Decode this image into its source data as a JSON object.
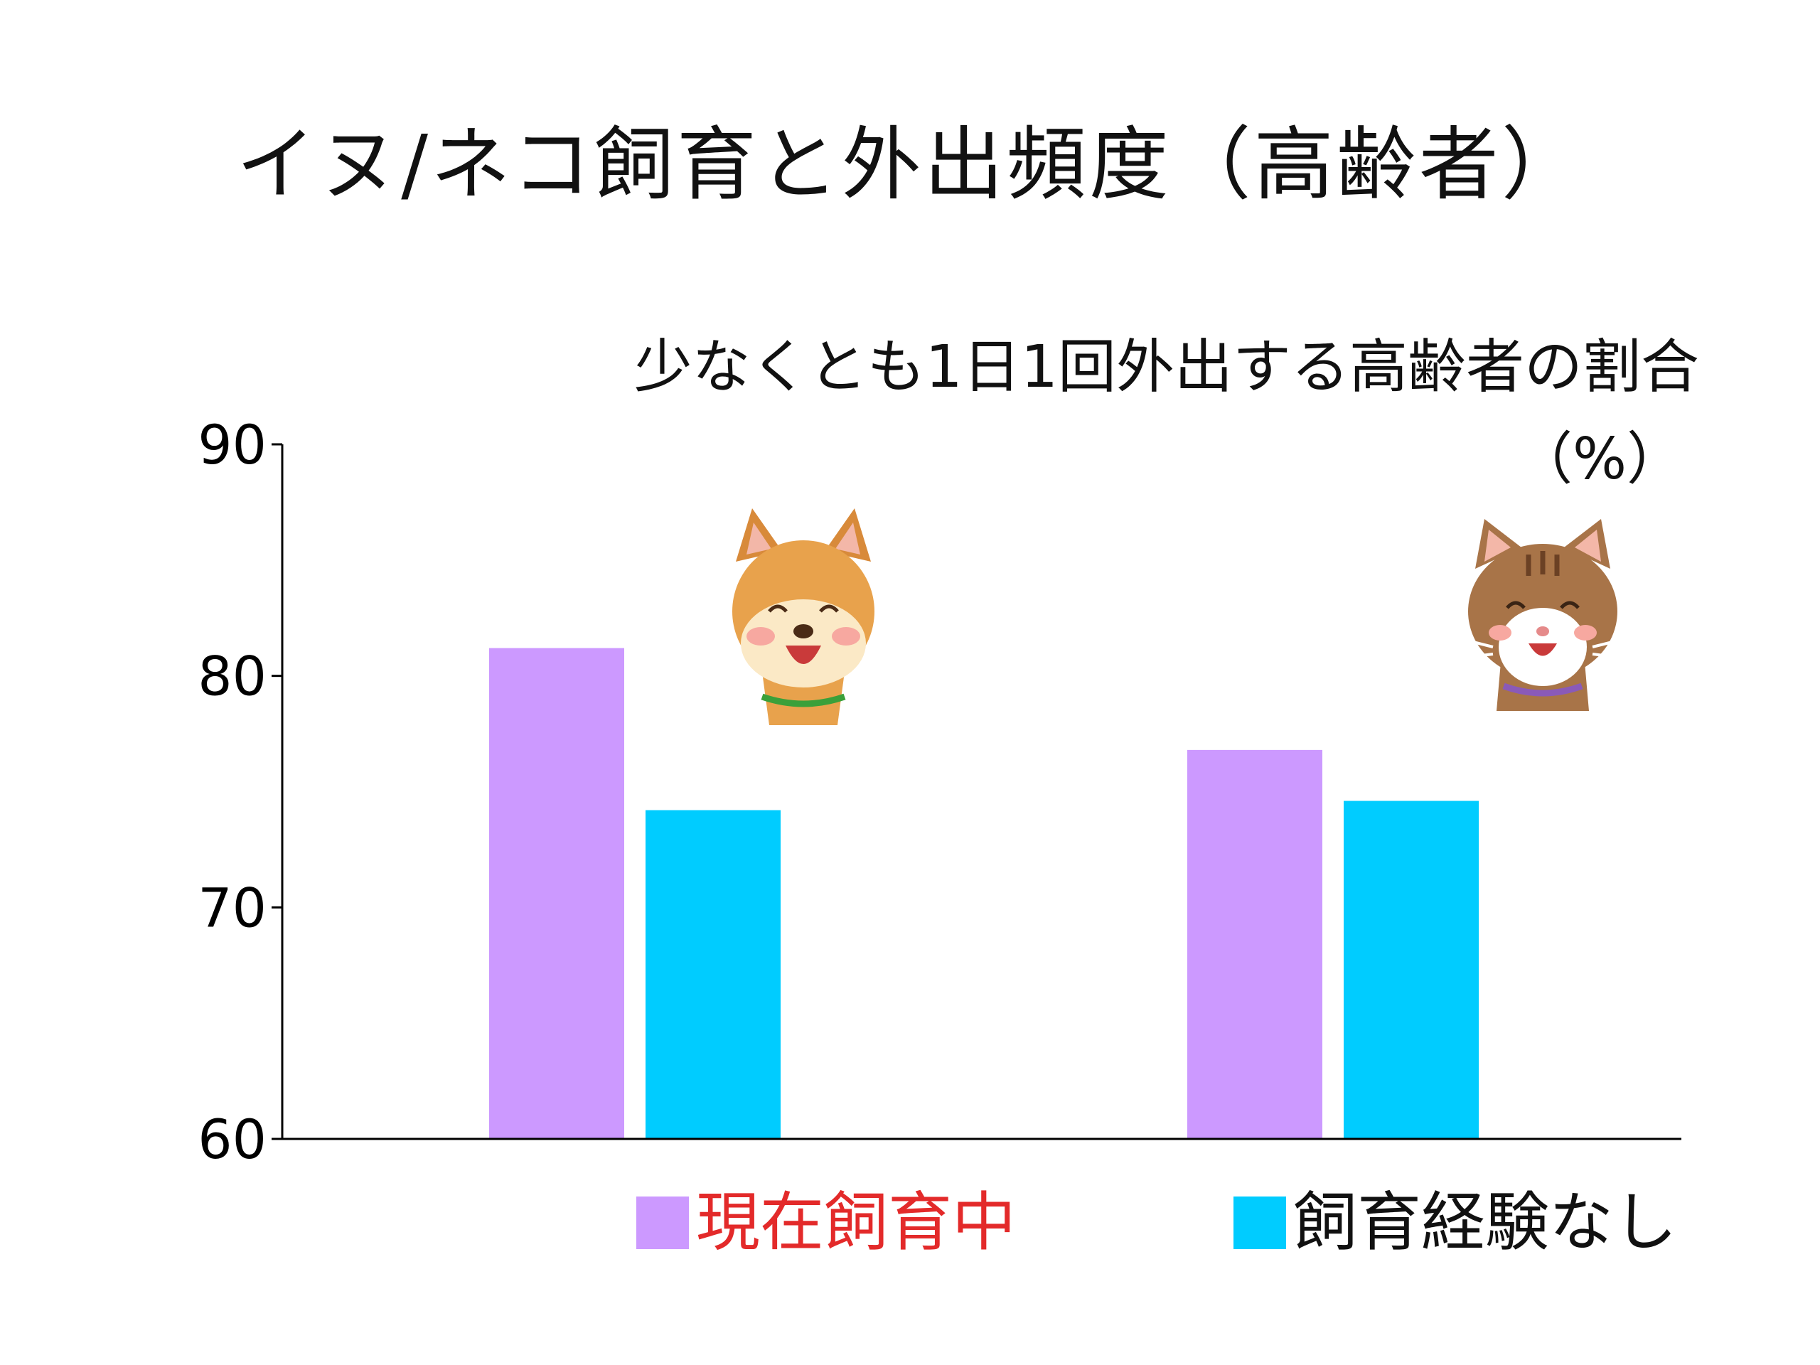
{
  "slide": {
    "title": "イヌ/ネコ飼育と外出頻度（高齢者）"
  },
  "chart_data": {
    "type": "bar",
    "title": "少なくとも1日1回外出する高齢者の割合",
    "ylabel": "（%）",
    "xlabel": "",
    "categories": [
      "イヌ",
      "ネコ"
    ],
    "category_icons": [
      "dog-icon",
      "cat-icon"
    ],
    "ylim": [
      60,
      90
    ],
    "yticks": [
      60,
      70,
      80,
      90
    ],
    "grid": false,
    "legend_position": "bottom",
    "series": [
      {
        "name": "現在飼育中",
        "values": [
          81.2,
          76.8
        ],
        "color": "#cc99ff",
        "label_color": "#e32a2a"
      },
      {
        "name": "飼育経験なし",
        "values": [
          74.2,
          74.6
        ],
        "color": "#00ccff",
        "label_color": "#111111"
      }
    ]
  }
}
